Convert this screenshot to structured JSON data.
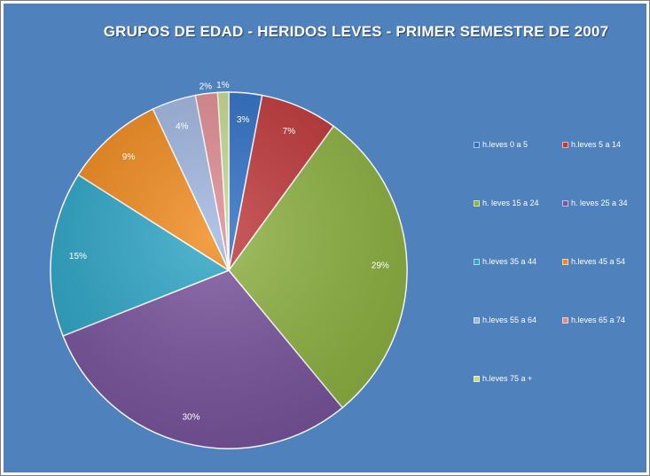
{
  "chart_data": {
    "type": "pie",
    "title": "GRUPOS DE EDAD - HERIDOS LEVES - PRIMER SEMESTRE DE 2007",
    "legend_position": "right",
    "slices": [
      {
        "label": "h.leves 0 a 5",
        "value": 3,
        "value_label": "3%",
        "color": "#2e6fc4"
      },
      {
        "label": "h.leves 5 a 14",
        "value": 7,
        "value_label": "7%",
        "color": "#c0393b"
      },
      {
        "label": "h. leves 15 a 24",
        "value": 29,
        "value_label": "29%",
        "color": "#8fb343"
      },
      {
        "label": "h. leves 25 a 34",
        "value": 30,
        "value_label": "30%",
        "color": "#7a559e"
      },
      {
        "label": "h.leves 35 a 44",
        "value": 15,
        "value_label": "15%",
        "color": "#2ea6c6"
      },
      {
        "label": "h.leves 45 a 54",
        "value": 9,
        "value_label": "9%",
        "color": "#f08a1e"
      },
      {
        "label": "h.leves 55 a 64",
        "value": 4,
        "value_label": "4%",
        "color": "#9fb6e0"
      },
      {
        "label": "h.leves 65 a 74",
        "value": 2,
        "value_label": "2%",
        "color": "#df8c91"
      },
      {
        "label": "h.leves 75 a +",
        "value": 1,
        "value_label": "1%",
        "color": "#c4d98e"
      }
    ]
  }
}
